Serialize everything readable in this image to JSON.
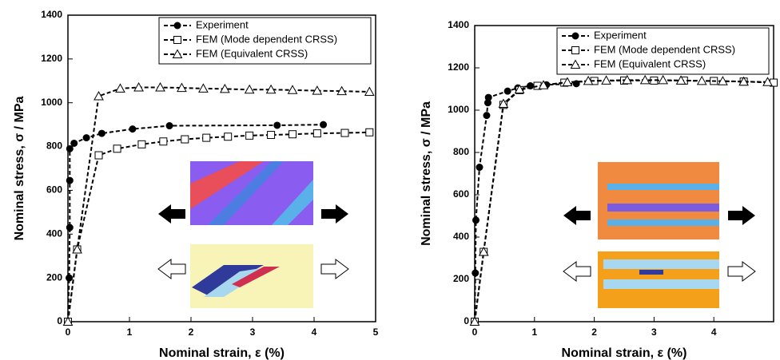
{
  "chart_data": [
    {
      "type": "line",
      "xlabel": "Nominal strain, ε (%)",
      "ylabel": "Nominal stress, σ / MPa",
      "xlim": [
        0,
        5
      ],
      "ylim": [
        0,
        1400
      ],
      "xticks": [
        0,
        1,
        2,
        3,
        4,
        5
      ],
      "yticks": [
        0,
        200,
        400,
        600,
        800,
        1000,
        1200,
        1400
      ],
      "legend": "upper right",
      "series": [
        {
          "name": "Experiment",
          "color": "#000000",
          "marker": "circle",
          "x": [
            0,
            0.02,
            0.03,
            0.03,
            0.03,
            0.1,
            0.3,
            0.55,
            1.05,
            1.65,
            3.4,
            4.15
          ],
          "values": [
            0,
            200,
            430,
            645,
            790,
            815,
            840,
            860,
            880,
            895,
            897,
            900
          ]
        },
        {
          "name": "FEM (Mode dependent CRSS)",
          "color": "#000000",
          "marker": "square",
          "x": [
            0,
            0.15,
            0.5,
            0.8,
            1.2,
            1.55,
            1.9,
            2.25,
            2.6,
            2.95,
            3.3,
            3.65,
            4.05,
            4.5,
            4.9
          ],
          "values": [
            0,
            330,
            760,
            790,
            810,
            823,
            833,
            840,
            845,
            850,
            853,
            856,
            860,
            862,
            865
          ]
        },
        {
          "name": "FEM (Equivalent CRSS)",
          "color": "#000000",
          "marker": "triangle",
          "x": [
            0,
            0.15,
            0.5,
            0.85,
            1.15,
            1.5,
            1.85,
            2.2,
            2.55,
            2.95,
            3.3,
            3.65,
            4.05,
            4.45,
            4.9
          ],
          "values": [
            0,
            330,
            1030,
            1065,
            1070,
            1070,
            1068,
            1065,
            1063,
            1060,
            1060,
            1058,
            1055,
            1053,
            1050
          ]
        }
      ]
    },
    {
      "type": "line",
      "xlabel": "Nominal strain, ε (%)",
      "ylabel": "Nominal stress, σ / MPa",
      "xlim": [
        0,
        5
      ],
      "ylim": [
        0,
        1400
      ],
      "xticks": [
        0,
        1,
        2,
        3,
        4
      ],
      "yticks": [
        0,
        200,
        400,
        600,
        800,
        1000,
        1200,
        1400
      ],
      "legend": "upper right",
      "series": [
        {
          "name": "Experiment",
          "color": "#000000",
          "marker": "circle",
          "x": [
            0,
            0.01,
            0.02,
            0.08,
            0.2,
            0.22,
            0.23,
            0.55,
            0.72,
            0.93,
            1.2,
            1.7
          ],
          "values": [
            0,
            230,
            480,
            730,
            975,
            1035,
            1060,
            1090,
            1105,
            1115,
            1120,
            1125
          ]
        },
        {
          "name": "FEM (Mode dependent CRSS)",
          "color": "#000000",
          "marker": "square",
          "x": [
            0,
            0.15,
            0.48,
            0.75,
            1.05,
            1.5,
            2,
            2.5,
            3,
            3.5,
            4,
            4.5,
            5
          ],
          "values": [
            0,
            330,
            1025,
            1095,
            1115,
            1130,
            1138,
            1140,
            1140,
            1140,
            1138,
            1135,
            1130
          ]
        },
        {
          "name": "FEM (Equivalent CRSS)",
          "color": "#000000",
          "marker": "triangle",
          "x": [
            0,
            0.15,
            0.48,
            0.75,
            1.15,
            1.55,
            1.9,
            2.2,
            2.55,
            2.85,
            3.15,
            3.45,
            3.8,
            4.15,
            4.5,
            4.9
          ],
          "values": [
            0,
            330,
            1030,
            1098,
            1118,
            1132,
            1138,
            1140,
            1142,
            1142,
            1142,
            1140,
            1138,
            1137,
            1135,
            1133
          ]
        }
      ]
    }
  ]
}
